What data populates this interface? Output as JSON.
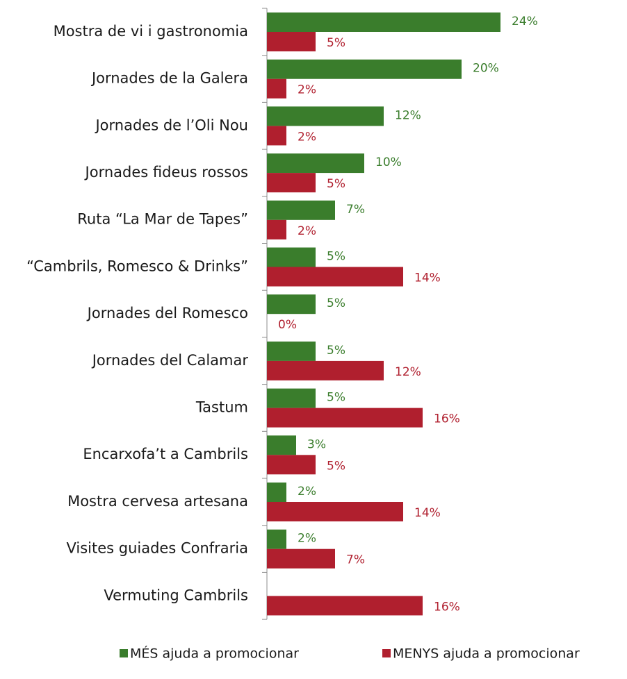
{
  "chart_data": {
    "type": "bar",
    "orientation": "horizontal",
    "title": "",
    "xlabel": "",
    "ylabel": "",
    "xlim": [
      0,
      24
    ],
    "grid": false,
    "legend_position": "bottom",
    "categories": [
      "Mostra de vi i gastronomia",
      "Jornades de la Galera",
      "Jornades de l’Oli Nou",
      "Jornades fideus rossos",
      "Ruta “La Mar de Tapes”",
      "“Cambrils, Romesco & Drinks”",
      "Jornades del Romesco",
      "Jornades del Calamar",
      "Tastum",
      "Encarxofa’t a Cambrils",
      "Mostra cervesa artesana",
      "Visites guiades Confraria",
      "Vermuting Cambrils"
    ],
    "series": [
      {
        "name": "MÉS ajuda a promocionar",
        "color": "#3a7d2c",
        "values": [
          24,
          20,
          12,
          10,
          7,
          5,
          5,
          5,
          5,
          3,
          2,
          2,
          null
        ],
        "labels": [
          "24%",
          "20%",
          "12%",
          "10%",
          "7%",
          "5%",
          "5%",
          "5%",
          "5%",
          "3%",
          "2%",
          "2%",
          null
        ]
      },
      {
        "name": "MENYS ajuda a promocionar",
        "color": "#b01f2e",
        "values": [
          5,
          2,
          2,
          5,
          2,
          14,
          0,
          12,
          16,
          5,
          14,
          7,
          16
        ],
        "labels": [
          "5%",
          "2%",
          "2%",
          "5%",
          "2%",
          "14%",
          "0%",
          "12%",
          "16%",
          "5%",
          "14%",
          "7%",
          "16%"
        ]
      }
    ]
  }
}
